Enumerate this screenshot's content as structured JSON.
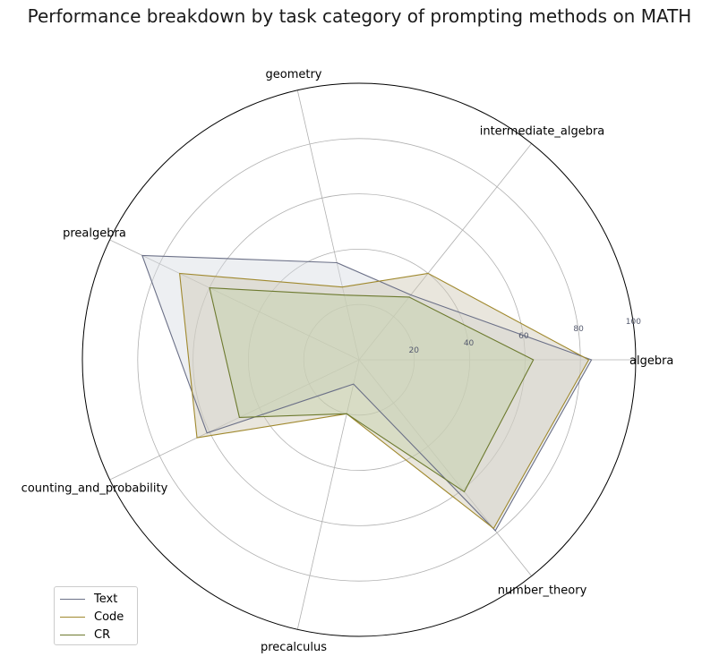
{
  "chart_data": {
    "type": "radar",
    "title": "Performance breakdown by task category of prompting methods on MATH",
    "categories": [
      "algebra",
      "intermediate_algebra",
      "geometry",
      "prealgebra",
      "counting_and_probability",
      "precalculus",
      "number_theory"
    ],
    "rlim": [
      0,
      100
    ],
    "rticks": [
      "20",
      "40",
      "60",
      "80",
      "100"
    ],
    "grid": true,
    "legend_position": "lower-left",
    "series": [
      {
        "name": "Text",
        "color": "#6b7087",
        "fill": "#d8dbe2",
        "values": [
          84,
          30,
          36,
          87,
          61,
          9,
          79
        ]
      },
      {
        "name": "Code",
        "color": "#a0892e",
        "fill": "#cfc7b4",
        "values": [
          83,
          40,
          27,
          72,
          65,
          20,
          78
        ]
      },
      {
        "name": "CR",
        "color": "#6d7a2f",
        "fill": "#c3d0a8",
        "values": [
          63,
          29,
          24,
          60,
          48,
          20,
          61
        ]
      }
    ]
  },
  "legend": {
    "items": [
      "Text",
      "Code",
      "CR"
    ]
  }
}
